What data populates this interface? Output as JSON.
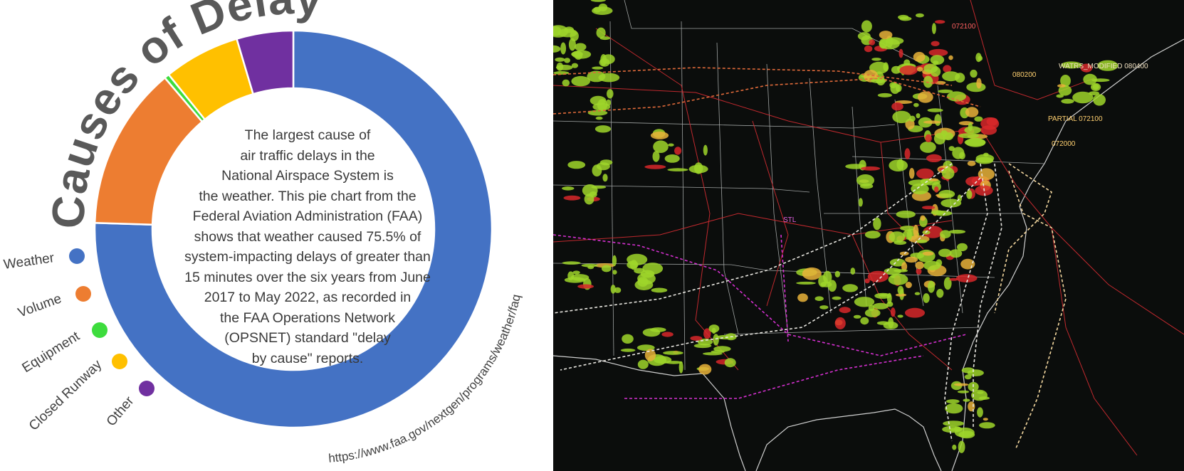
{
  "chart_data": {
    "type": "pie",
    "title": "Causes of Delays",
    "series": [
      {
        "name": "Weather",
        "value": 75.5,
        "color": "#4472c4"
      },
      {
        "name": "Volume",
        "value": 13.3,
        "color": "#ed7d31"
      },
      {
        "name": "Equipment",
        "value": 0.4,
        "color": "#3ddc3d"
      },
      {
        "name": "Closed Runway",
        "value": 6.2,
        "color": "#ffc000"
      },
      {
        "name": "Other",
        "value": 4.6,
        "color": "#7030a0"
      }
    ],
    "legend_position": "left",
    "center_text": [
      "The largest cause of",
      "air traffic delays in the",
      "National Airspace System is",
      "the weather. This pie chart from the",
      "Federal Aviation Administration (FAA)",
      "shows that weather caused 75.5% of",
      "system-impacting delays of greater than",
      "15 minutes over the six years from June",
      "2017 to May 2022, as recorded in",
      "the FAA Operations Network",
      "(OPSNET) standard \"delay",
      "by cause\" reports."
    ],
    "source_url": "https://www.faa.gov/nextgen/programs/weather/faq"
  },
  "radar_map": {
    "labels": [
      "STL",
      "WATRS_MODIFIED 080400",
      "PARTIAL 072100",
      "072000",
      "080200",
      "072100"
    ]
  }
}
